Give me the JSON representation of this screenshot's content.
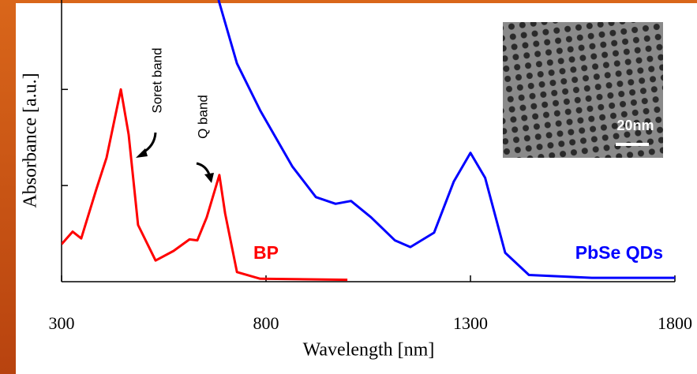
{
  "chart_data": {
    "type": "line",
    "x_label": "Wavelength [nm]",
    "y_label": "Absorbance [a.u.]",
    "xlim": [
      300,
      1800
    ],
    "xticks": [
      300,
      800,
      1300,
      1800
    ],
    "ylim": [
      0,
      2.93
    ],
    "yticks": [
      1,
      2
    ],
    "series": [
      {
        "name": "BP",
        "color": "#ff0000",
        "x": [
          300,
          327,
          348,
          385,
          410,
          445,
          464,
          487,
          530,
          574,
          613,
          632,
          655,
          686,
          700,
          729,
          786,
          999
        ],
        "values": [
          0.39,
          0.52,
          0.45,
          0.96,
          1.29,
          2.0,
          1.53,
          0.59,
          0.22,
          0.32,
          0.44,
          0.43,
          0.67,
          1.11,
          0.71,
          0.1,
          0.03,
          0.02
        ]
      },
      {
        "name": "PbSe QDs",
        "color": "#0000ff",
        "x": [
          684,
          729,
          786,
          864,
          922,
          970,
          1008,
          1057,
          1115,
          1153,
          1211,
          1259,
          1300,
          1336,
          1385,
          1443,
          1597,
          1800
        ],
        "values": [
          2.93,
          2.27,
          1.78,
          1.2,
          0.88,
          0.81,
          0.84,
          0.67,
          0.43,
          0.36,
          0.51,
          1.04,
          1.34,
          1.08,
          0.3,
          0.07,
          0.04,
          0.04
        ]
      }
    ],
    "annotations": [
      "Soret band",
      "Q band"
    ],
    "inset_label": "20nm"
  }
}
